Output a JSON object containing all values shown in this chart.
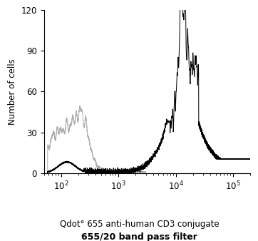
{
  "title_line1": "Qdot° 655 anti-human CD3 conjugate",
  "title_line2": "655/20 band pass filter",
  "ylabel": "Number of cells",
  "xlim_log": [
    50,
    200000
  ],
  "ylim": [
    0,
    120
  ],
  "yticks": [
    0,
    30,
    60,
    90,
    120
  ],
  "bg_color": "#ffffff",
  "line_color_black": "#000000",
  "line_color_gray": "#b0b0b0",
  "seed": 7
}
